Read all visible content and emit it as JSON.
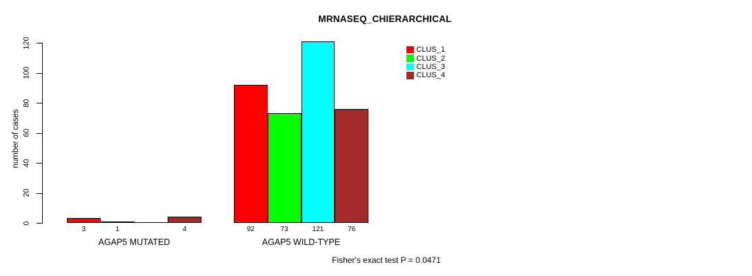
{
  "chart_data": {
    "type": "bar",
    "title": "MRNASEQ_CHIERARCHICAL",
    "ylabel": "number of cases",
    "xlabel": "",
    "ylim": [
      0,
      120
    ],
    "yticks": [
      0,
      20,
      40,
      60,
      80,
      100,
      120
    ],
    "grid": false,
    "legend_position": "top-right",
    "categories": [
      "AGAP5 MUTATED",
      "AGAP5 WILD-TYPE"
    ],
    "series": [
      {
        "name": "CLUS_1",
        "color": "#ff0000",
        "values": [
          3,
          92
        ]
      },
      {
        "name": "CLUS_2",
        "color": "#00ff00",
        "values": [
          1,
          73
        ]
      },
      {
        "name": "CLUS_3",
        "color": "#00ffff",
        "values": [
          0,
          121
        ]
      },
      {
        "name": "CLUS_4",
        "color": "#a52a2a",
        "values": [
          4,
          76
        ]
      }
    ],
    "bar_value_labels": [
      [
        "3",
        "1",
        "",
        "4"
      ],
      [
        "92",
        "73",
        "121",
        "76"
      ]
    ],
    "footnote": "Fisher's exact test P = 0.0471"
  }
}
